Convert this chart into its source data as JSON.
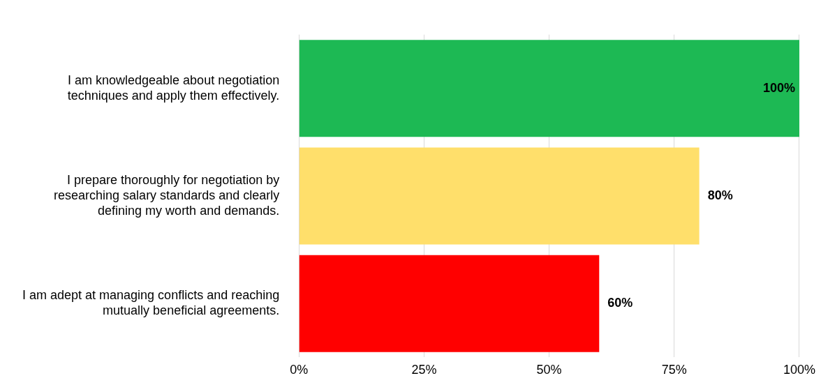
{
  "chart_data": {
    "type": "bar",
    "orientation": "horizontal",
    "categories": [
      "I am knowledgeable about negotiation techniques and apply them effectively.",
      "I prepare thoroughly for negotiation by researching salary standards and clearly defining my worth and demands.",
      "I am adept at managing conflicts and reaching mutually beneficial agreements."
    ],
    "values": [
      100,
      80,
      60
    ],
    "colors": [
      "#1db954",
      "#ffdf6b",
      "#ff0000"
    ],
    "value_labels": [
      "100%",
      "80%",
      "60%"
    ],
    "xlim": [
      0,
      100
    ],
    "xticks": [
      {
        "value": 0,
        "label": "0%"
      },
      {
        "value": 25,
        "label": "25%"
      },
      {
        "value": 50,
        "label": "50%"
      },
      {
        "value": 75,
        "label": "75%"
      },
      {
        "value": 100,
        "label": "100%"
      }
    ],
    "grid": "x",
    "legend": false
  }
}
